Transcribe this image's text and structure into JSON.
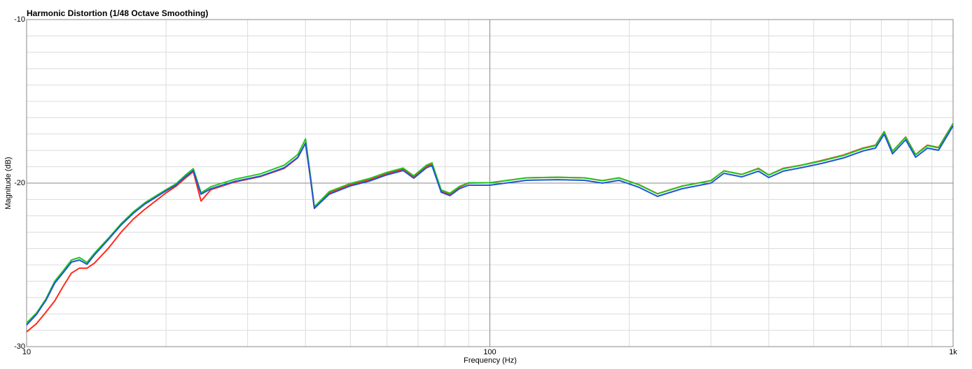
{
  "chart_data": {
    "type": "line",
    "title": "Harmonic Distortion (1/48 Octave Smoothing)",
    "x_label": "Frequency (Hz)",
    "y_label": "Magnitude (dB)",
    "x_scale": "log",
    "grid": true,
    "xlim": [
      10,
      1000
    ],
    "xticks": [
      10,
      100,
      {
        "value": 1000,
        "label": "1k"
      }
    ],
    "xminorticks": [
      20,
      30,
      40,
      50,
      60,
      70,
      80,
      90,
      200,
      300,
      400,
      500,
      600,
      700,
      800,
      900
    ],
    "ylim": [
      -30,
      -10
    ],
    "yticks": [
      -10,
      -20,
      -30
    ],
    "yminorticks": [
      -11,
      -12,
      -13,
      -14,
      -15,
      -16,
      -17,
      -18,
      -19,
      -21,
      -22,
      -23,
      -24,
      -25,
      -26,
      -27,
      -28,
      -29
    ],
    "x": [
      10,
      10.5,
      11,
      11.5,
      12,
      12.5,
      13,
      13.5,
      14,
      15,
      16,
      17,
      18,
      20,
      21,
      22,
      22.9,
      23.8,
      25,
      28,
      32,
      36,
      38.5,
      40,
      41,
      41.8,
      45,
      50,
      55,
      60,
      65,
      68.5,
      73,
      75,
      78.5,
      82,
      86,
      90,
      100,
      120,
      140,
      160,
      175,
      190,
      210,
      230,
      260,
      300,
      320,
      350,
      380,
      400,
      430,
      470,
      520,
      580,
      640,
      680,
      710,
      740,
      790,
      830,
      880,
      930,
      1000
    ],
    "series": [
      {
        "color": "#ff2a1a",
        "values": [
          -29.1,
          -28.6,
          -27.9,
          -27.2,
          -26.3,
          -25.5,
          -25.2,
          -25.2,
          -24.9,
          -24.0,
          -23.0,
          -22.2,
          -21.6,
          -20.6,
          -20.2,
          -19.7,
          -19.3,
          -21.1,
          -20.4,
          -19.95,
          -19.6,
          -19.1,
          -18.45,
          -17.55,
          -19.75,
          -21.55,
          -20.6,
          -20.1,
          -19.8,
          -19.42,
          -19.15,
          -19.62,
          -18.98,
          -18.85,
          -20.5,
          -20.7,
          -20.25,
          -20.0,
          -19.98,
          -19.68,
          -19.64,
          -19.68,
          -19.85,
          -19.68,
          -20.1,
          -20.65,
          -20.18,
          -19.85,
          -19.25,
          -19.47,
          -19.1,
          -19.5,
          -19.1,
          -18.9,
          -18.62,
          -18.28,
          -17.85,
          -17.68,
          -16.85,
          -18.05,
          -17.18,
          -18.25,
          -17.68,
          -17.82,
          -16.35
        ]
      },
      {
        "color": "#22c51c",
        "values": [
          -28.55,
          -27.95,
          -27.1,
          -26.0,
          -25.35,
          -24.7,
          -24.55,
          -24.85,
          -24.3,
          -23.38,
          -22.48,
          -21.76,
          -21.2,
          -20.4,
          -20.05,
          -19.52,
          -19.12,
          -20.6,
          -20.22,
          -19.78,
          -19.43,
          -18.9,
          -18.25,
          -17.3,
          -19.6,
          -21.45,
          -20.52,
          -20.02,
          -19.72,
          -19.34,
          -19.08,
          -19.55,
          -18.9,
          -18.76,
          -20.42,
          -20.62,
          -20.2,
          -19.98,
          -19.98,
          -19.68,
          -19.64,
          -19.68,
          -19.85,
          -19.68,
          -20.11,
          -20.66,
          -20.19,
          -19.85,
          -19.25,
          -19.47,
          -19.12,
          -19.51,
          -19.12,
          -18.91,
          -18.65,
          -18.31,
          -17.88,
          -17.71,
          -16.86,
          -18.06,
          -17.2,
          -18.27,
          -17.71,
          -17.84,
          -16.38
        ]
      },
      {
        "color": "#1f56d6",
        "values": [
          -28.68,
          -28.03,
          -27.18,
          -26.11,
          -25.47,
          -24.83,
          -24.7,
          -24.96,
          -24.4,
          -23.46,
          -22.56,
          -21.84,
          -21.28,
          -20.47,
          -20.13,
          -19.62,
          -19.23,
          -20.68,
          -20.34,
          -19.91,
          -19.57,
          -19.06,
          -18.42,
          -17.56,
          -19.7,
          -21.54,
          -20.68,
          -20.17,
          -19.87,
          -19.49,
          -19.23,
          -19.7,
          -19.06,
          -18.93,
          -20.56,
          -20.77,
          -20.34,
          -20.13,
          -20.13,
          -19.83,
          -19.79,
          -19.83,
          -20.0,
          -19.83,
          -20.26,
          -20.81,
          -20.34,
          -20.0,
          -19.4,
          -19.62,
          -19.27,
          -19.66,
          -19.27,
          -19.06,
          -18.8,
          -18.46,
          -18.03,
          -17.86,
          -17.01,
          -18.21,
          -17.35,
          -18.42,
          -17.86,
          -17.99,
          -16.5
        ]
      }
    ]
  }
}
